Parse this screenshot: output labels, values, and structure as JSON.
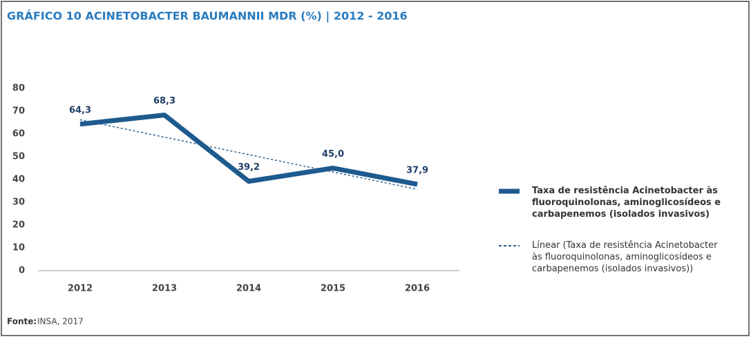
{
  "chart_data": {
    "type": "line",
    "title": "GRÁFICO 10 ACINETOBACTER BAUMANNII MDR (%) | 2012 - 2016",
    "categories": [
      "2012",
      "2013",
      "2014",
      "2015",
      "2016"
    ],
    "series": [
      {
        "name": "Taxa de resistência Acinetobacter às fluoroquinolonas, aminoglicosídeos e carbapenemos (isolados invasivos)",
        "color": "#1d5a8e",
        "style": "solid",
        "values": [
          64.3,
          68.3,
          39.2,
          45.0,
          37.9
        ],
        "value_labels": [
          "64,3",
          "68,3",
          "39,2",
          "45,0",
          "37,9"
        ]
      },
      {
        "name": "Línear (Taxa de resistência Acinetobacter às fluoroquinolonas, aminoglicosídeos e carbapenemos (isolados invasivos))",
        "color": "#2a5d8a",
        "style": "dashed",
        "values": [
          66.2,
          58.6,
          50.9,
          43.3,
          35.7
        ]
      }
    ],
    "ylim": [
      0,
      80
    ],
    "yticks": [
      0,
      10,
      20,
      30,
      40,
      50,
      60,
      70,
      80
    ],
    "grid": false,
    "legend": "right",
    "source_label": "Fonte:",
    "source": "INSA, 2017"
  }
}
